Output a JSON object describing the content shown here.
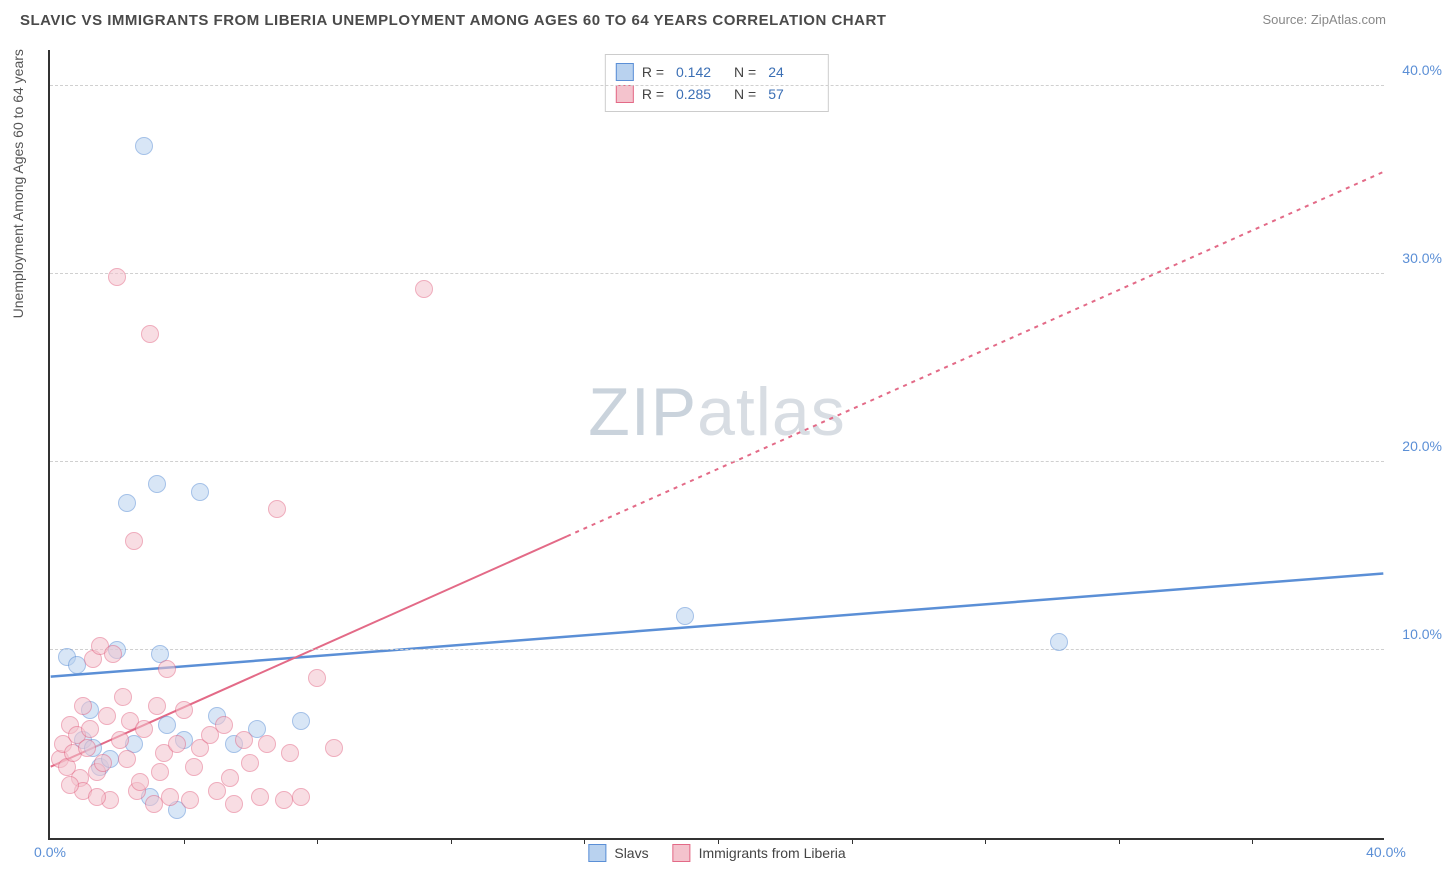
{
  "header": {
    "title": "SLAVIC VS IMMIGRANTS FROM LIBERIA UNEMPLOYMENT AMONG AGES 60 TO 64 YEARS CORRELATION CHART",
    "source": "Source: ZipAtlas.com"
  },
  "chart": {
    "type": "scatter",
    "ylabel": "Unemployment Among Ages 60 to 64 years",
    "xlim": [
      0,
      40
    ],
    "ylim": [
      0,
      42
    ],
    "xticks": [
      0,
      40
    ],
    "xtick_labels": [
      "0.0%",
      "40.0%"
    ],
    "xtick_minor": [
      4,
      8,
      12,
      16,
      20,
      24,
      28,
      32,
      36
    ],
    "yticks": [
      10,
      20,
      30,
      40
    ],
    "ytick_labels": [
      "10.0%",
      "20.0%",
      "30.0%",
      "40.0%"
    ],
    "background_color": "#ffffff",
    "grid_color": "#d0d0d0",
    "axis_color": "#333333",
    "tick_label_color": "#5b8fd6",
    "point_radius": 9,
    "point_opacity": 0.55,
    "watermark": {
      "text_a": "ZIP",
      "text_b": "atlas"
    },
    "series": [
      {
        "name": "Slavs",
        "label": "Slavs",
        "fill": "#b9d2ef",
        "stroke": "#5b8fd6",
        "trend": {
          "x1": 0,
          "y1": 8.6,
          "x2": 40,
          "y2": 14.1,
          "dash": "none",
          "width": 2.5
        },
        "stats": {
          "R_label": "R =",
          "R": "0.142",
          "N_label": "N =",
          "N": "24"
        },
        "points": [
          [
            0.5,
            9.6
          ],
          [
            0.8,
            9.2
          ],
          [
            1.0,
            5.2
          ],
          [
            1.2,
            6.8
          ],
          [
            1.3,
            4.8
          ],
          [
            1.5,
            3.8
          ],
          [
            2.0,
            10.0
          ],
          [
            2.3,
            17.8
          ],
          [
            2.5,
            5.0
          ],
          [
            2.8,
            36.8
          ],
          [
            3.0,
            2.2
          ],
          [
            3.2,
            18.8
          ],
          [
            3.3,
            9.8
          ],
          [
            3.5,
            6.0
          ],
          [
            3.8,
            1.5
          ],
          [
            4.0,
            5.2
          ],
          [
            4.5,
            18.4
          ],
          [
            5.0,
            6.5
          ],
          [
            5.5,
            5.0
          ],
          [
            6.2,
            5.8
          ],
          [
            7.5,
            6.2
          ],
          [
            19.0,
            11.8
          ],
          [
            30.2,
            10.4
          ],
          [
            1.8,
            4.2
          ]
        ]
      },
      {
        "name": "Immigrants from Liberia",
        "label": "Immigrants from Liberia",
        "fill": "#f4c3cd",
        "stroke": "#e36a87",
        "trend": {
          "x1": 0,
          "y1": 3.8,
          "x2": 40,
          "y2": 35.5,
          "dash_at": 15.5,
          "dash": "4,5",
          "width": 2
        },
        "stats": {
          "R_label": "R =",
          "R": "0.285",
          "N_label": "N =",
          "N": "57"
        },
        "points": [
          [
            0.3,
            4.2
          ],
          [
            0.4,
            5.0
          ],
          [
            0.5,
            3.8
          ],
          [
            0.6,
            6.0
          ],
          [
            0.7,
            4.5
          ],
          [
            0.8,
            5.5
          ],
          [
            0.9,
            3.2
          ],
          [
            1.0,
            7.0
          ],
          [
            1.1,
            4.8
          ],
          [
            1.2,
            5.8
          ],
          [
            1.3,
            9.5
          ],
          [
            1.4,
            3.5
          ],
          [
            1.5,
            10.2
          ],
          [
            1.6,
            4.0
          ],
          [
            1.7,
            6.5
          ],
          [
            1.8,
            2.0
          ],
          [
            1.9,
            9.8
          ],
          [
            2.0,
            29.8
          ],
          [
            2.1,
            5.2
          ],
          [
            2.2,
            7.5
          ],
          [
            2.3,
            4.2
          ],
          [
            2.4,
            6.2
          ],
          [
            2.5,
            15.8
          ],
          [
            2.6,
            2.5
          ],
          [
            2.8,
            5.8
          ],
          [
            3.0,
            26.8
          ],
          [
            3.1,
            1.8
          ],
          [
            3.2,
            7.0
          ],
          [
            3.4,
            4.5
          ],
          [
            3.5,
            9.0
          ],
          [
            3.6,
            2.2
          ],
          [
            3.8,
            5.0
          ],
          [
            4.0,
            6.8
          ],
          [
            4.2,
            2.0
          ],
          [
            4.5,
            4.8
          ],
          [
            4.8,
            5.5
          ],
          [
            5.0,
            2.5
          ],
          [
            5.2,
            6.0
          ],
          [
            5.5,
            1.8
          ],
          [
            5.8,
            5.2
          ],
          [
            6.0,
            4.0
          ],
          [
            6.3,
            2.2
          ],
          [
            6.5,
            5.0
          ],
          [
            6.8,
            17.5
          ],
          [
            7.0,
            2.0
          ],
          [
            7.2,
            4.5
          ],
          [
            7.5,
            2.2
          ],
          [
            8.0,
            8.5
          ],
          [
            8.5,
            4.8
          ],
          [
            2.7,
            3.0
          ],
          [
            1.0,
            2.5
          ],
          [
            0.6,
            2.8
          ],
          [
            1.4,
            2.2
          ],
          [
            3.3,
            3.5
          ],
          [
            11.2,
            29.2
          ],
          [
            4.3,
            3.8
          ],
          [
            5.4,
            3.2
          ]
        ]
      }
    ],
    "legend_bottom": [
      {
        "label": "Slavs",
        "fill": "#b9d2ef",
        "stroke": "#5b8fd6"
      },
      {
        "label": "Immigrants from Liberia",
        "fill": "#f4c3cd",
        "stroke": "#e36a87"
      }
    ]
  }
}
